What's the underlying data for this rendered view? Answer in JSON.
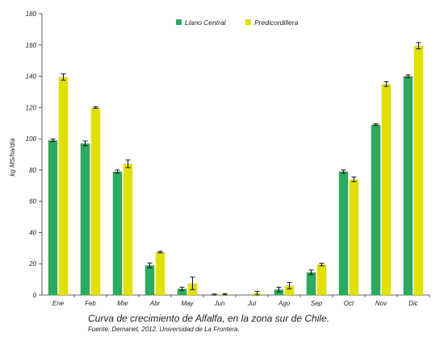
{
  "chart_data": {
    "type": "bar",
    "categories": [
      "Ene",
      "Feb",
      "Mar",
      "Abr",
      "May",
      "Jun",
      "Jul",
      "Ago",
      "Sep",
      "Oct",
      "Nov",
      "Dic"
    ],
    "series": [
      {
        "name": "Llano Central",
        "color": "#2eaa5f",
        "values": [
          99,
          97,
          79,
          19,
          4,
          0.3,
          0,
          3.5,
          14.5,
          79,
          109,
          140
        ],
        "errors": [
          0.8,
          1.5,
          1,
          1.5,
          1,
          0.3,
          0,
          1.5,
          1.5,
          1,
          0.5,
          0.8
        ]
      },
      {
        "name": "Predicordillera",
        "color": "#e1e000",
        "values": [
          139.5,
          120,
          84,
          27.5,
          7.5,
          0.5,
          1.2,
          6,
          19.5,
          74,
          135,
          159.5
        ],
        "errors": [
          2,
          0.5,
          2.5,
          0.5,
          4,
          0.4,
          1.2,
          2,
          0.8,
          1.5,
          1.5,
          2
        ]
      }
    ],
    "ylabel": "kg MS/ha/día",
    "ylim": [
      0,
      180
    ],
    "yticks": [
      0,
      20,
      40,
      60,
      80,
      100,
      120,
      140,
      160,
      180
    ],
    "legend_position": "top-center",
    "grid": false
  },
  "caption": {
    "title": "Curva de crecimiento de Alfalfa, en la zona sur de Chile.",
    "source": "Fuente: Demanet, 2012. Universidad de La Frontera."
  }
}
